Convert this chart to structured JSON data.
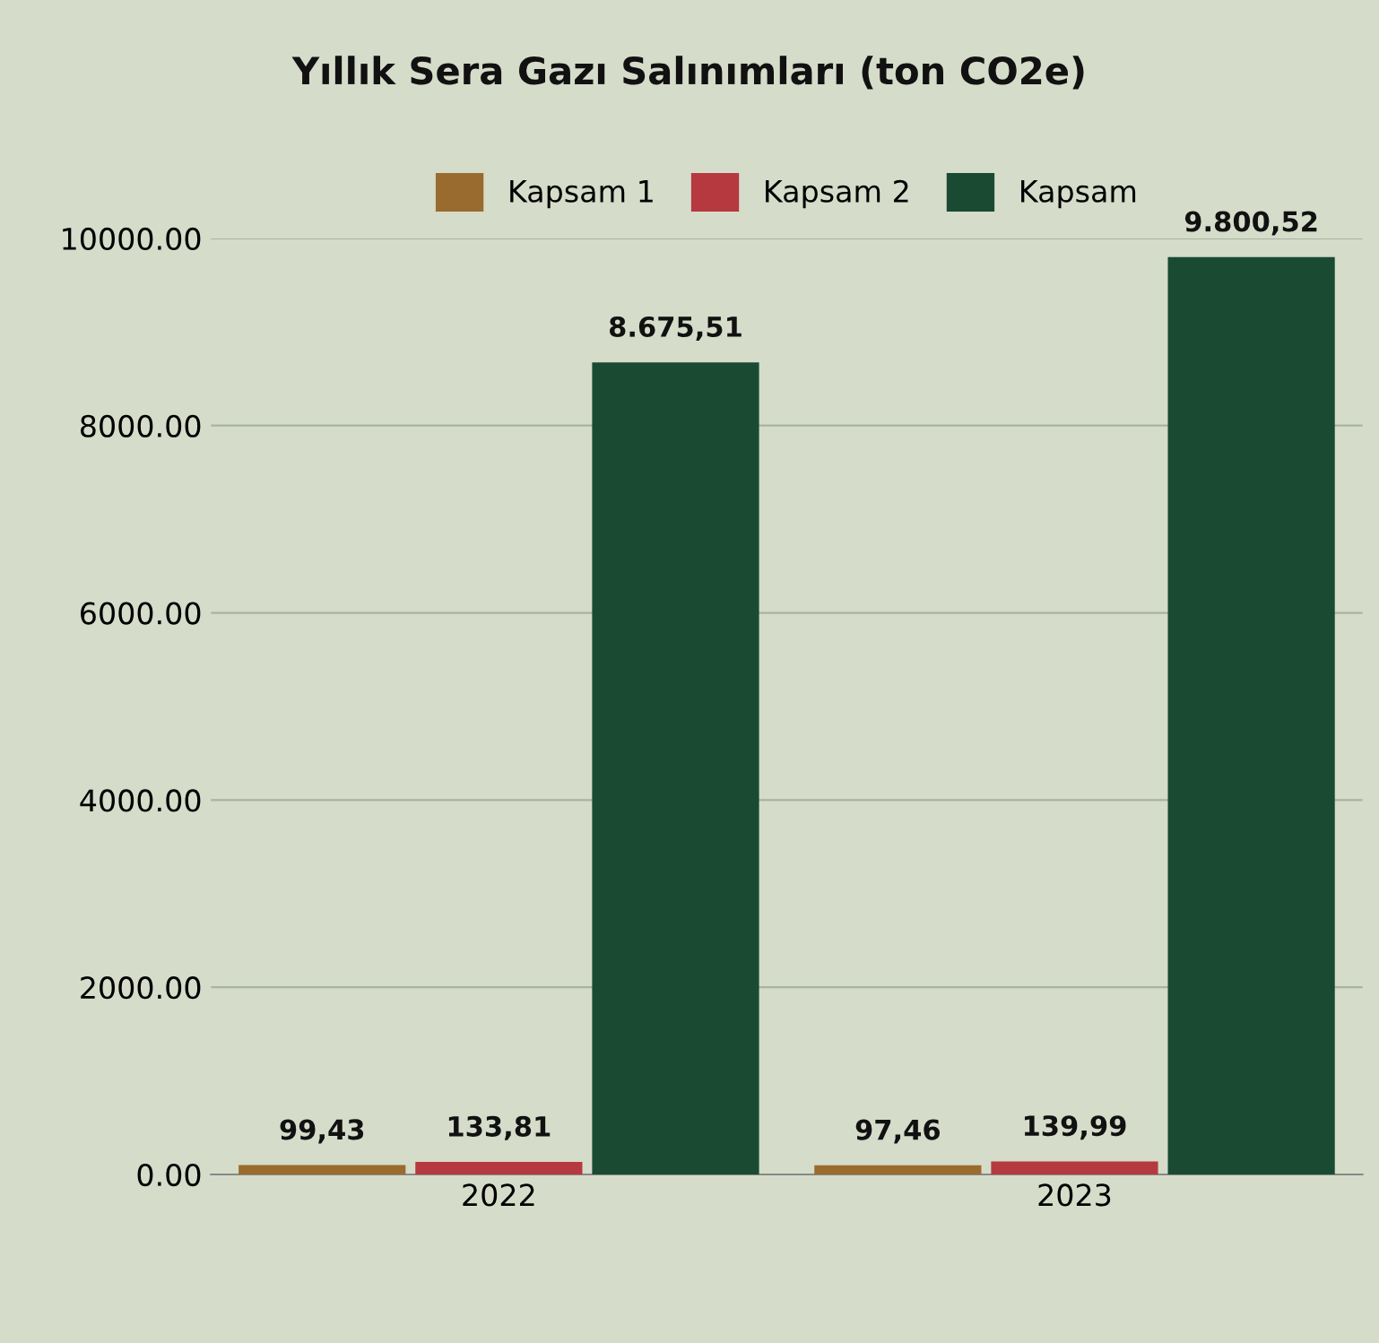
{
  "chart_data": {
    "type": "bar",
    "title": "Yıllık Sera Gazı Salınımları (ton CO2e)",
    "categories": [
      "2022",
      "2023"
    ],
    "series": [
      {
        "name": "Kapsam 1",
        "color": "#9a6b2e",
        "values": [
          99.43,
          97.46
        ],
        "value_labels": [
          "99,43",
          "97,46"
        ]
      },
      {
        "name": "Kapsam 2",
        "color": "#b5393f",
        "values": [
          133.81,
          139.99
        ],
        "value_labels": [
          "133,81",
          "139,99"
        ]
      },
      {
        "name": "Kapsam",
        "color": "#1a4a32",
        "values": [
          8675.51,
          9800.52
        ],
        "value_labels": [
          "8.675,51",
          "9.800,52"
        ]
      }
    ],
    "ylim": [
      0,
      10000
    ],
    "yticks": [
      {
        "value": 0,
        "label": "0.00"
      },
      {
        "value": 2000,
        "label": "2000.00"
      },
      {
        "value": 4000,
        "label": "4000.00"
      },
      {
        "value": 6000,
        "label": "6000.00"
      },
      {
        "value": 8000,
        "label": "8000.00"
      },
      {
        "value": 10000,
        "label": "10000.00"
      }
    ],
    "grid": "y",
    "legend": "top"
  }
}
